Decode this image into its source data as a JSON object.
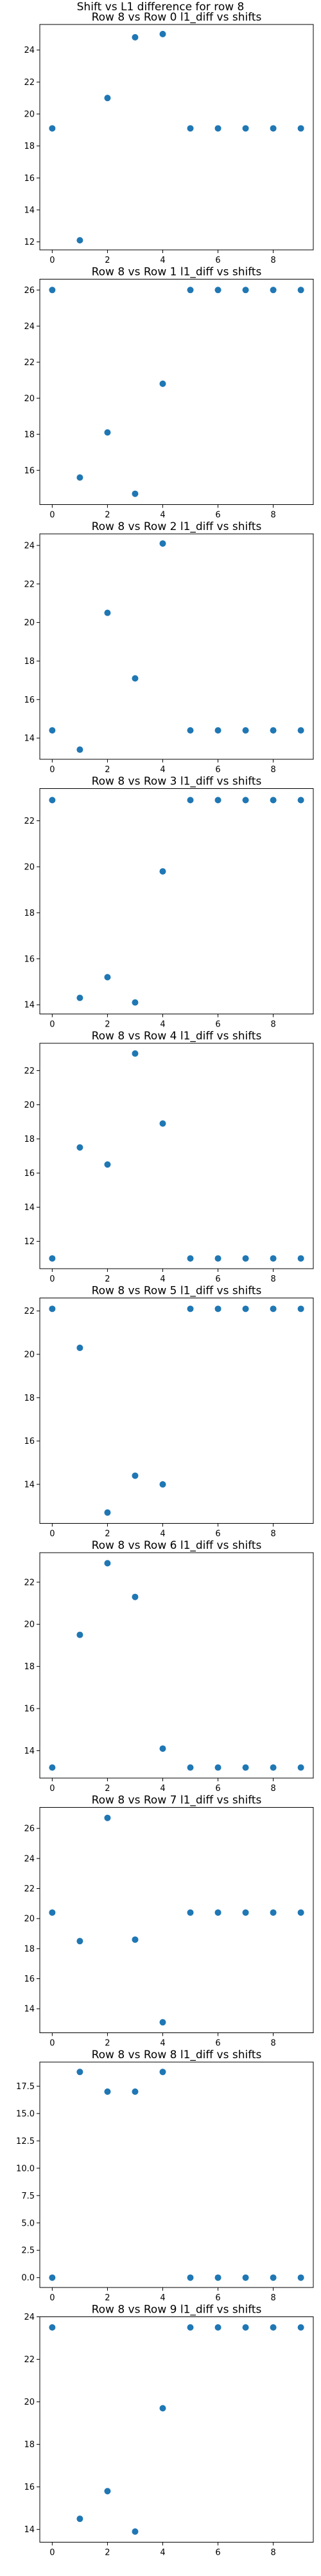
{
  "figure_title": "Shift vs L1 difference for row 8",
  "marker_color": "#1f77b4",
  "chart_data": [
    {
      "type": "scatter",
      "title": "Row 8 vs Row 0 l1_diff vs shifts",
      "x": [
        0,
        1,
        2,
        3,
        4,
        5,
        6,
        7,
        8,
        9
      ],
      "y": [
        19.1,
        12.1,
        21.0,
        24.8,
        25.0,
        19.1,
        19.1,
        19.1,
        19.1,
        19.1
      ],
      "xlim": [
        -0.45,
        9.45
      ],
      "ylim": [
        11.5,
        25.6
      ],
      "xticks": [
        0,
        2,
        4,
        6,
        8
      ],
      "xtick_labels": [
        "0",
        "2",
        "4",
        "6",
        "8"
      ],
      "yticks": [
        12,
        14,
        16,
        18,
        20,
        22,
        24
      ],
      "ytick_labels": [
        "12",
        "14",
        "16",
        "18",
        "20",
        "22",
        "24"
      ]
    },
    {
      "type": "scatter",
      "title": "Row 8 vs Row 1 l1_diff vs shifts",
      "x": [
        0,
        1,
        2,
        3,
        4,
        5,
        6,
        7,
        8,
        9
      ],
      "y": [
        26.0,
        15.6,
        18.1,
        14.7,
        20.8,
        26.0,
        26.0,
        26.0,
        26.0,
        26.0
      ],
      "xlim": [
        -0.45,
        9.45
      ],
      "ylim": [
        14.1,
        26.6
      ],
      "xticks": [
        0,
        2,
        4,
        6,
        8
      ],
      "xtick_labels": [
        "0",
        "2",
        "4",
        "6",
        "8"
      ],
      "yticks": [
        16,
        18,
        20,
        22,
        24,
        26
      ],
      "ytick_labels": [
        "16",
        "18",
        "20",
        "22",
        "24",
        "26"
      ]
    },
    {
      "type": "scatter",
      "title": "Row 8 vs Row 2 l1_diff vs shifts",
      "x": [
        0,
        1,
        2,
        3,
        4,
        5,
        6,
        7,
        8,
        9
      ],
      "y": [
        14.4,
        13.4,
        20.5,
        17.1,
        24.1,
        14.4,
        14.4,
        14.4,
        14.4,
        14.4
      ],
      "xlim": [
        -0.45,
        9.45
      ],
      "ylim": [
        12.9,
        24.6
      ],
      "xticks": [
        0,
        2,
        4,
        6,
        8
      ],
      "xtick_labels": [
        "0",
        "2",
        "4",
        "6",
        "8"
      ],
      "yticks": [
        14,
        16,
        18,
        20,
        22,
        24
      ],
      "ytick_labels": [
        "14",
        "16",
        "18",
        "20",
        "22",
        "24"
      ]
    },
    {
      "type": "scatter",
      "title": "Row 8 vs Row 3 l1_diff vs shifts",
      "x": [
        0,
        1,
        2,
        3,
        4,
        5,
        6,
        7,
        8,
        9
      ],
      "y": [
        22.9,
        14.3,
        15.2,
        14.1,
        19.8,
        22.9,
        22.9,
        22.9,
        22.9,
        22.9
      ],
      "xlim": [
        -0.45,
        9.45
      ],
      "ylim": [
        13.6,
        23.4
      ],
      "xticks": [
        0,
        2,
        4,
        6,
        8
      ],
      "xtick_labels": [
        "0",
        "2",
        "4",
        "6",
        "8"
      ],
      "yticks": [
        14,
        16,
        18,
        20,
        22
      ],
      "ytick_labels": [
        "14",
        "16",
        "18",
        "20",
        "22"
      ]
    },
    {
      "type": "scatter",
      "title": "Row 8 vs Row 4 l1_diff vs shifts",
      "x": [
        0,
        1,
        2,
        3,
        4,
        5,
        6,
        7,
        8,
        9
      ],
      "y": [
        11.0,
        17.5,
        16.5,
        23.0,
        18.9,
        11.0,
        11.0,
        11.0,
        11.0,
        11.0
      ],
      "xlim": [
        -0.45,
        9.45
      ],
      "ylim": [
        10.4,
        23.6
      ],
      "xticks": [
        0,
        2,
        4,
        6,
        8
      ],
      "xtick_labels": [
        "0",
        "2",
        "4",
        "6",
        "8"
      ],
      "yticks": [
        12,
        14,
        16,
        18,
        20,
        22
      ],
      "ytick_labels": [
        "12",
        "14",
        "16",
        "18",
        "20",
        "22"
      ]
    },
    {
      "type": "scatter",
      "title": "Row 8 vs Row 5 l1_diff vs shifts",
      "x": [
        0,
        1,
        2,
        3,
        4,
        5,
        6,
        7,
        8,
        9
      ],
      "y": [
        22.1,
        20.3,
        12.7,
        14.4,
        14.0,
        22.1,
        22.1,
        22.1,
        22.1,
        22.1
      ],
      "xlim": [
        -0.45,
        9.45
      ],
      "ylim": [
        12.2,
        22.6
      ],
      "xticks": [
        0,
        2,
        4,
        6,
        8
      ],
      "xtick_labels": [
        "0",
        "2",
        "4",
        "6",
        "8"
      ],
      "yticks": [
        14,
        16,
        18,
        20,
        22
      ],
      "ytick_labels": [
        "14",
        "16",
        "18",
        "20",
        "22"
      ]
    },
    {
      "type": "scatter",
      "title": "Row 8 vs Row 6 l1_diff vs shifts",
      "x": [
        0,
        1,
        2,
        3,
        4,
        5,
        6,
        7,
        8,
        9
      ],
      "y": [
        13.2,
        19.5,
        22.9,
        21.3,
        14.1,
        13.2,
        13.2,
        13.2,
        13.2,
        13.2
      ],
      "xlim": [
        -0.45,
        9.45
      ],
      "ylim": [
        12.7,
        23.4
      ],
      "xticks": [
        0,
        2,
        4,
        6,
        8
      ],
      "xtick_labels": [
        "0",
        "2",
        "4",
        "6",
        "8"
      ],
      "yticks": [
        14,
        16,
        18,
        20,
        22
      ],
      "ytick_labels": [
        "14",
        "16",
        "18",
        "20",
        "22"
      ]
    },
    {
      "type": "scatter",
      "title": "Row 8 vs Row 7 l1_diff vs shifts",
      "x": [
        0,
        1,
        2,
        3,
        4,
        5,
        6,
        7,
        8,
        9
      ],
      "y": [
        20.4,
        18.5,
        26.7,
        18.6,
        13.1,
        20.4,
        20.4,
        20.4,
        20.4,
        20.4
      ],
      "xlim": [
        -0.45,
        9.45
      ],
      "ylim": [
        12.4,
        27.4
      ],
      "xticks": [
        0,
        2,
        4,
        6,
        8
      ],
      "xtick_labels": [
        "0",
        "2",
        "4",
        "6",
        "8"
      ],
      "yticks": [
        14,
        16,
        18,
        20,
        22,
        24,
        26
      ],
      "ytick_labels": [
        "14",
        "16",
        "18",
        "20",
        "22",
        "24",
        "26"
      ]
    },
    {
      "type": "scatter",
      "title": "Row 8 vs Row 8 l1_diff vs shifts",
      "x": [
        0,
        1,
        2,
        3,
        4,
        5,
        6,
        7,
        8,
        9
      ],
      "y": [
        0.0,
        18.8,
        17.0,
        17.0,
        18.8,
        0.0,
        0.0,
        0.0,
        0.0,
        0.0
      ],
      "xlim": [
        -0.45,
        9.45
      ],
      "ylim": [
        -0.9,
        19.7
      ],
      "xticks": [
        0,
        2,
        4,
        6,
        8
      ],
      "xtick_labels": [
        "0",
        "2",
        "4",
        "6",
        "8"
      ],
      "yticks": [
        0,
        2.5,
        5,
        7.5,
        10,
        12.5,
        15,
        17.5
      ],
      "ytick_labels": [
        "0.0",
        "2.5",
        "5.0",
        "7.5",
        "10.0",
        "12.5",
        "15.0",
        "17.5"
      ]
    },
    {
      "type": "scatter",
      "title": "Row 8 vs Row 9 l1_diff vs shifts",
      "x": [
        0,
        1,
        2,
        3,
        4,
        5,
        6,
        7,
        8,
        9
      ],
      "y": [
        23.5,
        14.5,
        15.8,
        13.9,
        19.7,
        23.5,
        23.5,
        23.5,
        23.5,
        23.5
      ],
      "xlim": [
        -0.45,
        9.45
      ],
      "ylim": [
        13.4,
        24.0
      ],
      "xticks": [
        0,
        2,
        4,
        6,
        8
      ],
      "xtick_labels": [
        "0",
        "2",
        "4",
        "6",
        "8"
      ],
      "yticks": [
        14,
        16,
        18,
        20,
        22,
        24
      ],
      "ytick_labels": [
        "14",
        "16",
        "18",
        "20",
        "22",
        "24"
      ]
    }
  ]
}
